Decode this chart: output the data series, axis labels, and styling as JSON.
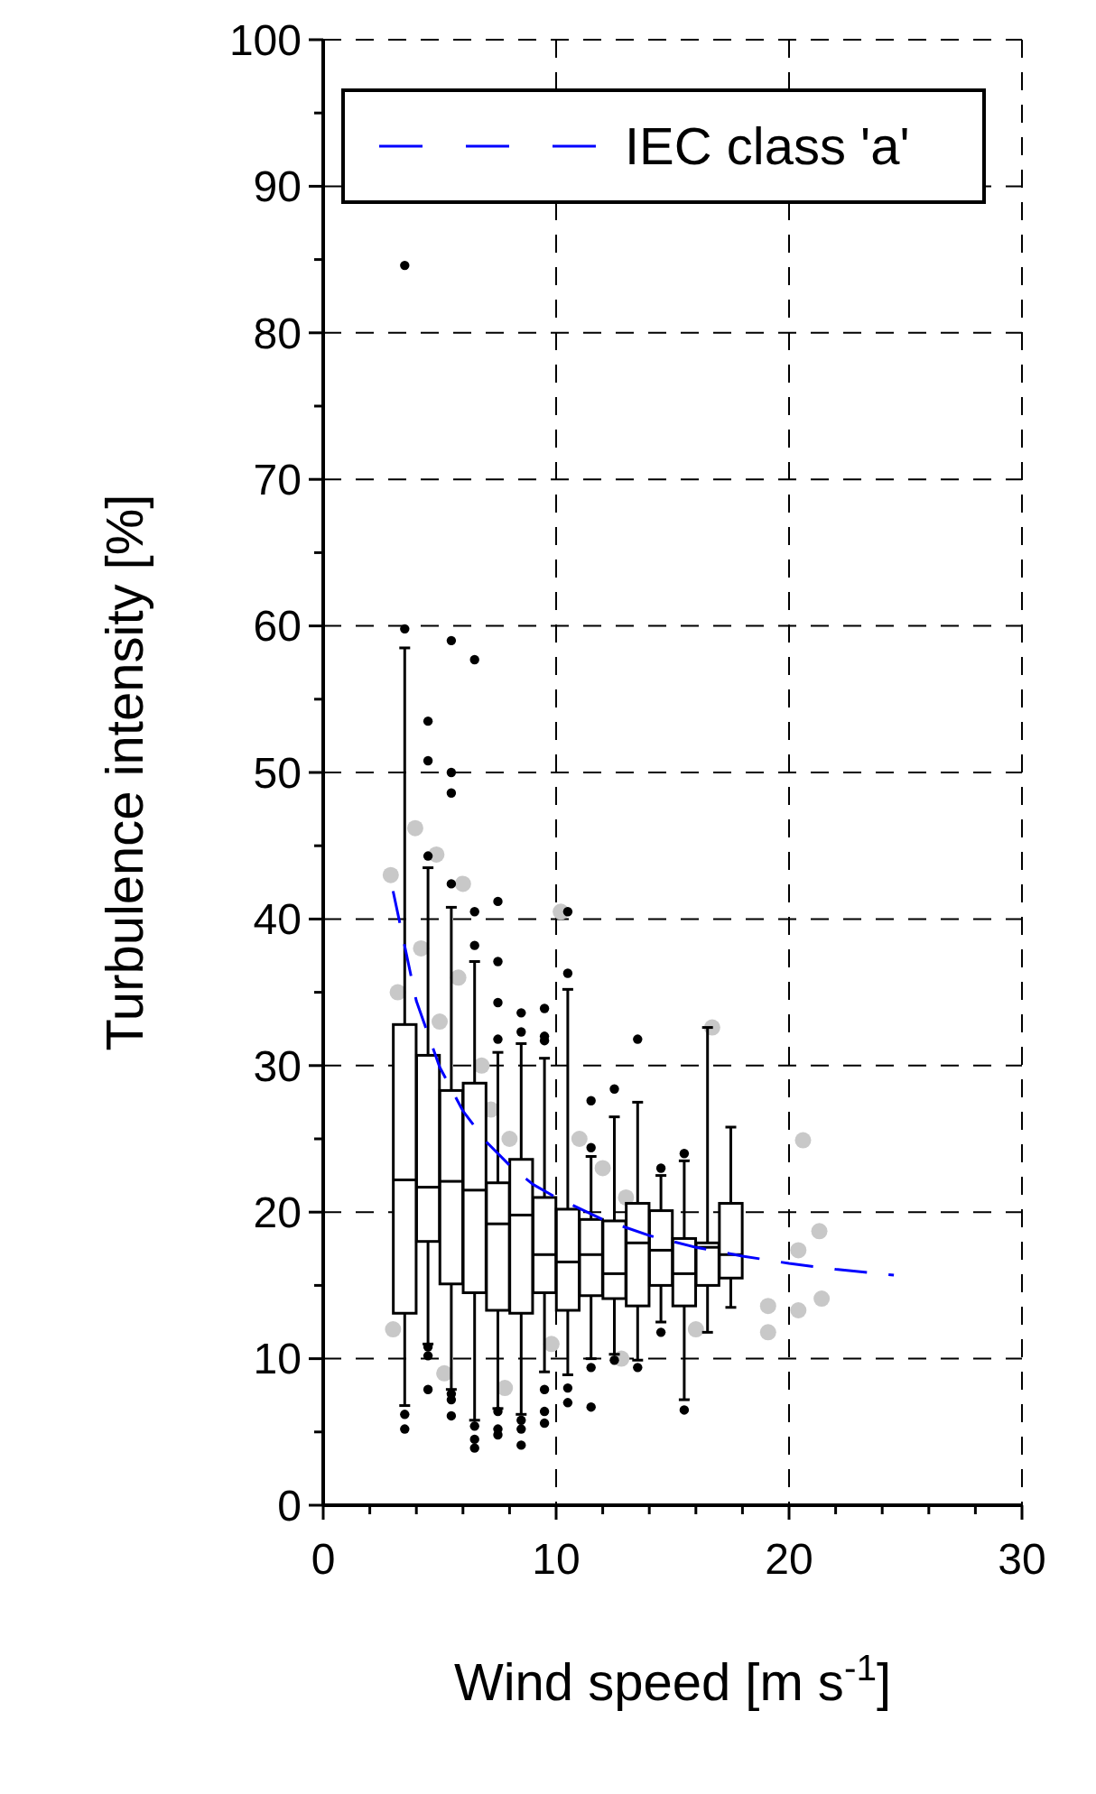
{
  "chart_data": {
    "type": "box",
    "xlabel": "Wind speed [m s$^{-1}$]",
    "ylabel": "Turbulence intensity [%]",
    "x": [
      3.5,
      4.5,
      5.5,
      6.5,
      7.5,
      8.5,
      9.5,
      10.5,
      11.5,
      12.5,
      13.5,
      14.5,
      15.5,
      16.5,
      17.5
    ],
    "boxes": [
      {
        "low": 6.8,
        "q1": 13.1,
        "median": 22.2,
        "q3": 32.8,
        "high": 58.5,
        "outliers": [
          59.8,
          84.6,
          6.2,
          5.2
        ]
      },
      {
        "low": 11,
        "q1": 18.0,
        "median": 21.7,
        "q3": 30.7,
        "high": 43.5,
        "outliers": [
          44.3,
          50.8,
          53.5,
          10.8,
          10.2,
          7.9
        ]
      },
      {
        "low": 7.9,
        "q1": 15.1,
        "median": 22.1,
        "q3": 28.3,
        "high": 40.8,
        "outliers": [
          42.4,
          48.6,
          50,
          59,
          7.6,
          7.2,
          6.1
        ]
      },
      {
        "low": 5.8,
        "q1": 14.5,
        "median": 21.5,
        "q3": 28.8,
        "high": 37.1,
        "outliers": [
          38.2,
          40.5,
          57.7,
          5.4,
          4.5,
          3.9
        ]
      },
      {
        "low": 6.6,
        "q1": 13.3,
        "median": 19.2,
        "q3": 22.0,
        "high": 30.9,
        "outliers": [
          31.8,
          34.3,
          37.1,
          41.2,
          6.4,
          5.2,
          4.8
        ]
      },
      {
        "low": 6.2,
        "q1": 13.1,
        "median": 19.8,
        "q3": 23.6,
        "high": 31.5,
        "outliers": [
          32.3,
          33.6,
          5.8,
          5.2,
          4.1
        ]
      },
      {
        "low": 9.1,
        "q1": 14.5,
        "median": 17.1,
        "q3": 21.0,
        "high": 30.5,
        "outliers": [
          31.7,
          32,
          33.9,
          7.9,
          6.4,
          5.6
        ]
      },
      {
        "low": 8.9,
        "q1": 13.3,
        "median": 16.6,
        "q3": 20.2,
        "high": 35.2,
        "outliers": [
          36.3,
          40.5,
          8.0,
          7.0
        ]
      },
      {
        "low": 10.0,
        "q1": 14.3,
        "median": 17.1,
        "q3": 19.5,
        "high": 23.8,
        "outliers": [
          24.4,
          27.6,
          9.4,
          6.7
        ]
      },
      {
        "low": 10.3,
        "q1": 14.1,
        "median": 15.8,
        "q3": 19.4,
        "high": 26.5,
        "outliers": [
          28.4,
          9.9
        ]
      },
      {
        "low": 9.9,
        "q1": 13.6,
        "median": 17.9,
        "q3": 20.6,
        "high": 27.5,
        "outliers": [
          31.8,
          9.4
        ]
      },
      {
        "low": 12.5,
        "q1": 15.0,
        "median": 17.4,
        "q3": 20.1,
        "high": 22.5,
        "outliers": [
          23.0,
          11.8
        ]
      },
      {
        "low": 7.2,
        "q1": 13.6,
        "median": 15.8,
        "q3": 18.2,
        "high": 23.5,
        "outliers": [
          24.0,
          6.5
        ]
      },
      {
        "low": 11.8,
        "q1": 15.0,
        "median": 17.6,
        "q3": 17.9,
        "high": 32.6
      },
      {
        "low": 13.5,
        "q1": 15.5,
        "median": 17.1,
        "q3": 20.6,
        "high": 25.8
      }
    ],
    "series": [
      {
        "type": "scatter",
        "color": "#c8c8c8",
        "x": [
          2.9,
          3.95,
          4.86,
          6.0,
          10.2,
          16.7,
          20.6,
          21.3,
          20.4,
          19.1,
          20.4,
          21.4,
          19.1,
          3.2,
          4.2,
          5.0,
          5.8,
          6.8,
          7.2,
          8.0,
          11.0,
          12.0,
          13.0,
          3.0,
          5.2,
          7.8,
          9.8,
          12.8,
          16.0
        ],
        "values": [
          43.0,
          46.2,
          44.4,
          42.4,
          40.5,
          32.6,
          24.9,
          18.7,
          17.4,
          13.6,
          13.3,
          14.1,
          11.8,
          35.0,
          38.0,
          33.0,
          36.0,
          30.0,
          27.0,
          25.0,
          25.0,
          23.0,
          21.0,
          12.0,
          9.0,
          8.0,
          11.0,
          10.0,
          12.0
        ]
      },
      {
        "type": "line",
        "name": "IEC class 'a'",
        "color": "#0000ff",
        "line_style": "dashed",
        "x": [
          3,
          4,
          5,
          6,
          7,
          8,
          9,
          10,
          12,
          14,
          16,
          18,
          20,
          22,
          24.5
        ],
        "values": [
          41.9,
          34.4,
          29.9,
          26.9,
          24.8,
          23.2,
          21.9,
          21.0,
          19.5,
          18.4,
          17.6,
          17.0,
          16.5,
          16.1,
          15.7
        ]
      }
    ],
    "xlim": [
      0,
      30
    ],
    "xticks": [
      0,
      {
        "value": 2,
        "label": null
      },
      {
        "value": 4,
        "label": null
      },
      {
        "value": 6,
        "label": null
      },
      {
        "value": 8,
        "label": null
      },
      10,
      {
        "value": 12,
        "label": null
      },
      {
        "value": 14,
        "label": null
      },
      {
        "value": 16,
        "label": null
      },
      {
        "value": 18,
        "label": null
      },
      20,
      {
        "value": 22,
        "label": null
      },
      {
        "value": 24,
        "label": null
      },
      {
        "value": 26,
        "label": null
      },
      {
        "value": 28,
        "label": null
      },
      30
    ],
    "ylim": [
      0,
      100
    ],
    "yticks": [
      0,
      {
        "value": 5,
        "label": null
      },
      10,
      {
        "value": 15,
        "label": null
      },
      20,
      {
        "value": 25,
        "label": null
      },
      30,
      {
        "value": 35,
        "label": null
      },
      40,
      {
        "value": 45,
        "label": null
      },
      50,
      {
        "value": 55,
        "label": null
      },
      60,
      {
        "value": 65,
        "label": null
      },
      70,
      {
        "value": 75,
        "label": null
      },
      80,
      {
        "value": 85,
        "label": null
      },
      90,
      {
        "value": 95,
        "label": null
      },
      100
    ],
    "grid": true,
    "legend": "top right"
  }
}
